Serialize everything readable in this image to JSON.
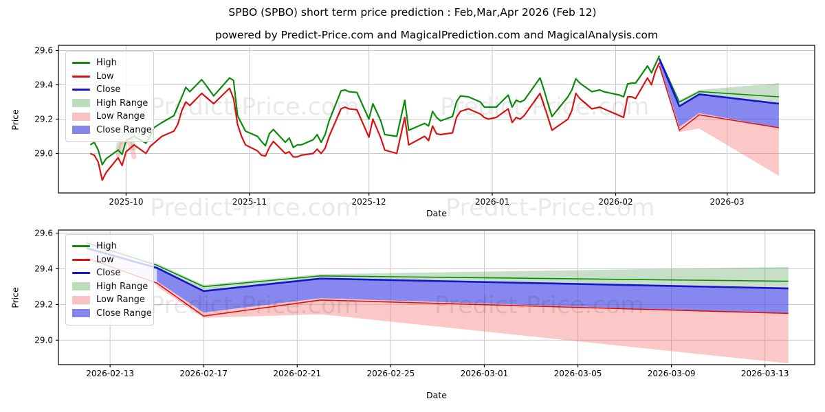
{
  "header": {
    "title": "SPBO (SPBO) short term price prediction : Feb,Mar,Apr 2026 (Feb 12)",
    "subtitle": "powered by Predict-Price.com and MagicalPrediction.com and MagicalAnalysis.com"
  },
  "watermark": {
    "text": "Predict-Price.com"
  },
  "legend": {
    "items": [
      {
        "label": "High",
        "type": "line",
        "color": "#0b8a0b"
      },
      {
        "label": "Low",
        "type": "line",
        "color": "#dd1111"
      },
      {
        "label": "Close",
        "type": "line",
        "color": "#1414cc"
      },
      {
        "label": "High Range",
        "type": "band",
        "color": "#bcdcbc"
      },
      {
        "label": "Low Range",
        "type": "band",
        "color": "#f9c2c2"
      },
      {
        "label": "Close Range",
        "type": "band",
        "color": "#8486ee"
      }
    ]
  },
  "colors": {
    "high_line": "#0b8a0b",
    "low_line": "#dd1111",
    "close_line": "#1414cc",
    "high_band": "rgba(70,150,70,0.30)",
    "low_band": "rgba(245,100,100,0.36)",
    "close_band": "rgba(70,72,230,0.65)",
    "lead_in_band": "rgba(110,110,225,0.22)",
    "ghost_high": "rgba(110,185,110,0.35)",
    "ghost_low": "rgba(245,135,135,0.40)",
    "grid": "#c9c9c9",
    "axis": "#000000",
    "tick_text": "#000000",
    "watermark": "rgba(0,0,0,0.085)"
  },
  "chart_data": [
    {
      "type": "line",
      "name": "historical-and-prediction",
      "ylabel": "Price",
      "xlabel": "Date",
      "x_range": [
        "2025-09-14",
        "2026-03-23"
      ],
      "y_range": [
        28.77,
        29.63
      ],
      "y_ticks": [
        29.0,
        29.2,
        29.4,
        29.6
      ],
      "x_ticks": [
        {
          "label": "2025-10",
          "date": "2025-10-01"
        },
        {
          "label": "2025-11",
          "date": "2025-11-01"
        },
        {
          "label": "2025-12",
          "date": "2025-12-01"
        },
        {
          "label": "2026-01",
          "date": "2026-01-01"
        },
        {
          "label": "2026-02",
          "date": "2026-02-01"
        },
        {
          "label": "2026-03",
          "date": "2026-03-01"
        }
      ],
      "series": [
        {
          "name": "High",
          "dates": [
            "2025-09-22",
            "2025-09-23",
            "2025-09-24",
            "2025-09-25",
            "2025-09-26",
            "2025-09-29",
            "2025-09-30",
            "2025-10-01",
            "2025-10-03",
            "2025-10-06",
            "2025-10-07",
            "2025-10-08",
            "2025-10-10",
            "2025-10-13",
            "2025-10-14",
            "2025-10-15",
            "2025-10-16",
            "2025-10-17",
            "2025-10-20",
            "2025-10-21",
            "2025-10-23",
            "2025-10-27",
            "2025-10-28",
            "2025-10-29",
            "2025-10-30",
            "2025-10-31",
            "2025-11-03",
            "2025-11-04",
            "2025-11-05",
            "2025-11-06",
            "2025-11-07",
            "2025-11-10",
            "2025-11-11",
            "2025-11-12",
            "2025-11-13",
            "2025-11-14",
            "2025-11-17",
            "2025-11-18",
            "2025-11-19",
            "2025-11-20",
            "2025-11-21",
            "2025-11-24",
            "2025-11-25",
            "2025-11-26",
            "2025-11-28",
            "2025-12-01",
            "2025-12-02",
            "2025-12-04",
            "2025-12-05",
            "2025-12-08",
            "2025-12-10",
            "2025-12-11",
            "2025-12-15",
            "2025-12-16",
            "2025-12-17",
            "2025-12-18",
            "2025-12-19",
            "2025-12-22",
            "2025-12-23",
            "2025-12-24",
            "2025-12-26",
            "2025-12-29",
            "2025-12-30",
            "2025-12-31",
            "2026-01-02",
            "2026-01-05",
            "2026-01-06",
            "2026-01-07",
            "2026-01-08",
            "2026-01-09",
            "2026-01-13",
            "2026-01-14",
            "2026-01-15",
            "2026-01-16",
            "2026-01-20",
            "2026-01-21",
            "2026-01-22",
            "2026-01-23",
            "2026-01-26",
            "2026-01-28",
            "2026-01-29",
            "2026-01-30",
            "2026-02-02",
            "2026-02-03",
            "2026-02-04",
            "2026-02-05",
            "2026-02-06",
            "2026-02-09",
            "2026-02-10",
            "2026-02-11",
            "2026-02-12"
          ],
          "values": [
            29.05,
            29.065,
            29.02,
            28.935,
            28.97,
            29.02,
            28.995,
            29.075,
            29.1,
            29.06,
            29.1,
            29.15,
            29.18,
            29.22,
            29.275,
            29.33,
            29.385,
            29.36,
            29.43,
            29.4,
            29.335,
            29.44,
            29.425,
            29.22,
            29.175,
            29.13,
            29.1,
            29.07,
            29.045,
            29.115,
            29.14,
            29.065,
            29.09,
            29.035,
            29.05,
            29.05,
            29.08,
            29.11,
            29.065,
            29.11,
            29.19,
            29.365,
            29.37,
            29.36,
            29.355,
            29.2,
            29.29,
            29.19,
            29.11,
            29.1,
            29.31,
            29.135,
            29.175,
            29.16,
            29.245,
            29.21,
            29.19,
            29.215,
            29.3,
            29.335,
            29.33,
            29.3,
            29.27,
            29.27,
            29.27,
            29.34,
            29.27,
            29.31,
            29.3,
            29.31,
            29.44,
            29.37,
            29.29,
            29.215,
            29.33,
            29.37,
            29.435,
            29.41,
            29.36,
            29.37,
            29.36,
            29.355,
            29.34,
            29.33,
            29.405,
            29.41,
            29.41,
            29.51,
            29.47,
            29.52,
            29.57
          ]
        },
        {
          "name": "Low",
          "dates": [
            "2025-09-22",
            "2025-09-23",
            "2025-09-24",
            "2025-09-25",
            "2025-09-26",
            "2025-09-29",
            "2025-09-30",
            "2025-10-01",
            "2025-10-03",
            "2025-10-06",
            "2025-10-07",
            "2025-10-08",
            "2025-10-10",
            "2025-10-13",
            "2025-10-14",
            "2025-10-15",
            "2025-10-16",
            "2025-10-17",
            "2025-10-20",
            "2025-10-21",
            "2025-10-23",
            "2025-10-27",
            "2025-10-28",
            "2025-10-29",
            "2025-10-30",
            "2025-10-31",
            "2025-11-03",
            "2025-11-04",
            "2025-11-05",
            "2025-11-06",
            "2025-11-07",
            "2025-11-10",
            "2025-11-11",
            "2025-11-12",
            "2025-11-13",
            "2025-11-14",
            "2025-11-17",
            "2025-11-18",
            "2025-11-19",
            "2025-11-20",
            "2025-11-21",
            "2025-11-24",
            "2025-11-25",
            "2025-11-26",
            "2025-11-28",
            "2025-12-01",
            "2025-12-02",
            "2025-12-04",
            "2025-12-05",
            "2025-12-08",
            "2025-12-10",
            "2025-12-11",
            "2025-12-15",
            "2025-12-16",
            "2025-12-17",
            "2025-12-18",
            "2025-12-19",
            "2025-12-22",
            "2025-12-23",
            "2025-12-24",
            "2025-12-26",
            "2025-12-29",
            "2025-12-30",
            "2025-12-31",
            "2026-01-02",
            "2026-01-05",
            "2026-01-06",
            "2026-01-07",
            "2026-01-08",
            "2026-01-09",
            "2026-01-13",
            "2026-01-14",
            "2026-01-15",
            "2026-01-16",
            "2026-01-20",
            "2026-01-21",
            "2026-01-22",
            "2026-01-23",
            "2026-01-26",
            "2026-01-28",
            "2026-01-29",
            "2026-01-30",
            "2026-02-02",
            "2026-02-03",
            "2026-02-04",
            "2026-02-05",
            "2026-02-06",
            "2026-02-09",
            "2026-02-10",
            "2026-02-11",
            "2026-02-12"
          ],
          "values": [
            29.0,
            28.99,
            28.95,
            28.845,
            28.89,
            28.975,
            28.93,
            29.01,
            29.05,
            29.0,
            29.04,
            29.06,
            29.1,
            29.13,
            29.17,
            29.25,
            29.3,
            29.28,
            29.35,
            29.33,
            29.29,
            29.38,
            29.32,
            29.17,
            29.1,
            29.05,
            29.015,
            28.99,
            28.985,
            29.035,
            29.07,
            29.0,
            29.01,
            28.98,
            28.98,
            28.99,
            29.0,
            29.025,
            29.0,
            29.03,
            29.1,
            29.26,
            29.27,
            29.26,
            29.255,
            29.095,
            29.2,
            29.09,
            29.02,
            29.0,
            29.21,
            29.05,
            29.1,
            29.075,
            29.16,
            29.115,
            29.11,
            29.12,
            29.21,
            29.245,
            29.26,
            29.23,
            29.21,
            29.2,
            29.21,
            29.26,
            29.18,
            29.21,
            29.2,
            29.22,
            29.35,
            29.28,
            29.21,
            29.135,
            29.2,
            29.25,
            29.35,
            29.32,
            29.26,
            29.27,
            29.26,
            29.25,
            29.22,
            29.21,
            29.33,
            29.33,
            29.32,
            29.44,
            29.4,
            29.48,
            29.53
          ]
        }
      ],
      "prediction": {
        "line_dates": [
          "2026-02-12",
          "2026-02-17",
          "2026-02-22",
          "2026-03-14"
        ],
        "high_line": [
          29.555,
          29.3,
          29.36,
          29.33
        ],
        "close_line": [
          29.55,
          29.275,
          29.345,
          29.29
        ],
        "low_line": [
          29.51,
          29.135,
          29.225,
          29.15
        ],
        "band_dates": [
          "2026-02-12",
          "2026-02-17",
          "2026-02-22",
          "2026-03-14"
        ],
        "high_range_top": [
          29.56,
          29.31,
          29.37,
          29.41
        ],
        "high_range_bottom": [
          29.54,
          29.275,
          29.345,
          29.29
        ],
        "close_range_top": [
          29.55,
          29.275,
          29.345,
          29.29
        ],
        "close_range_bottom": [
          29.52,
          29.155,
          29.235,
          29.15
        ],
        "low_range_top": [
          29.51,
          29.155,
          29.235,
          29.15
        ],
        "low_range_bottom": [
          29.49,
          29.125,
          29.145,
          28.87
        ]
      },
      "ghost_marks": {
        "dates": [
          "2025-09-29",
          "2025-10-01",
          "2025-10-03"
        ],
        "high": [
          29.03,
          29.13,
          29.03
        ],
        "low": [
          28.99,
          29.08,
          28.98
        ]
      }
    },
    {
      "type": "line",
      "name": "prediction-detail",
      "ylabel": "Price",
      "xlabel": "Date",
      "x_range": [
        "2026-02-10T19:00:00",
        "2026-03-15T03:00:00"
      ],
      "y_range": [
        28.863,
        29.617
      ],
      "y_ticks": [
        29.0,
        29.2,
        29.4,
        29.6
      ],
      "x_ticks": [
        {
          "label": "2026-02-13",
          "date": "2026-02-13"
        },
        {
          "label": "2026-02-17",
          "date": "2026-02-17"
        },
        {
          "label": "2026-02-21",
          "date": "2026-02-21"
        },
        {
          "label": "2026-02-25",
          "date": "2026-02-25"
        },
        {
          "label": "2026-03-01",
          "date": "2026-03-01"
        },
        {
          "label": "2026-03-05",
          "date": "2026-03-05"
        },
        {
          "label": "2026-03-09",
          "date": "2026-03-09"
        },
        {
          "label": "2026-03-13",
          "date": "2026-03-13"
        }
      ],
      "lead_in": {
        "dates": [
          "2026-02-12",
          "2026-02-15"
        ],
        "top": [
          29.575,
          29.43
        ],
        "bottom": [
          29.465,
          29.33
        ]
      },
      "prediction": {
        "line_dates": [
          "2026-02-12",
          "2026-02-15",
          "2026-02-17",
          "2026-02-22",
          "2026-03-14"
        ],
        "high_line": [
          29.545,
          29.42,
          29.3,
          29.36,
          29.33
        ],
        "close_line": [
          29.515,
          29.405,
          29.275,
          29.345,
          29.29
        ],
        "low_line": [
          29.46,
          29.32,
          29.135,
          29.225,
          29.15
        ],
        "band_dates": [
          "2026-02-15",
          "2026-02-17",
          "2026-02-22",
          "2026-03-14"
        ],
        "high_range_top": [
          29.43,
          29.31,
          29.37,
          29.41
        ],
        "high_range_bottom": [
          29.4,
          29.275,
          29.345,
          29.29
        ],
        "close_range_top": [
          29.405,
          29.275,
          29.345,
          29.29
        ],
        "close_range_bottom": [
          29.33,
          29.155,
          29.235,
          29.15
        ],
        "low_range_top": [
          29.33,
          29.155,
          29.235,
          29.15
        ],
        "low_range_bottom": [
          29.3,
          29.125,
          29.145,
          28.87
        ]
      }
    }
  ]
}
